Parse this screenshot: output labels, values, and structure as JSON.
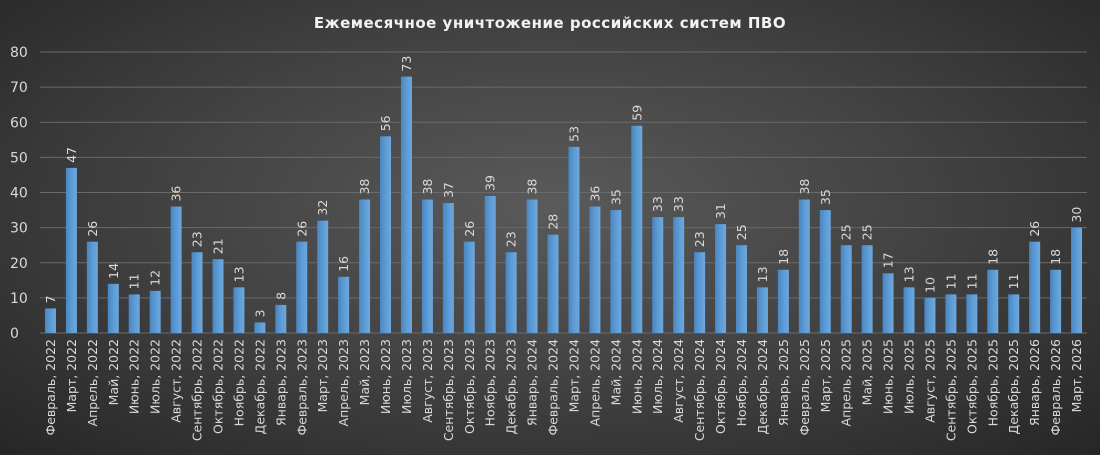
{
  "chart_data": {
    "type": "bar",
    "title": "Ежемесячное  уничтожение  российских  систем  ПВО",
    "xlabel": "",
    "ylabel": "",
    "ylim": [
      0,
      80
    ],
    "yticks": [
      0,
      10,
      20,
      30,
      40,
      50,
      60,
      70,
      80
    ],
    "grid": true,
    "legend": "none",
    "bar_color": "#5b9bd5",
    "categories": [
      "Февраль, 2022",
      "Март, 2022",
      "Апрель, 2022",
      "Май, 2022",
      "Июнь, 2022",
      "Июль, 2022",
      "Август, 2022",
      "Сентябрь, 2022",
      "Октябрь, 2022",
      "Ноябрь, 2022",
      "Декабрь, 2022",
      "Январь, 2023",
      "Февраль, 2023",
      "Март, 2023",
      "Апрель, 2023",
      "Май, 2023",
      "Июнь, 2023",
      "Июль, 2023",
      "Август, 2023",
      "Сентябрь, 2023",
      "Октябрь, 2023",
      "Ноябрь, 2023",
      "Декабрь, 2023",
      "Январь, 2024",
      "Февраль, 2024",
      "Март, 2024",
      "Апрель, 2024",
      "Май, 2024",
      "Июнь, 2024",
      "Июль, 2024",
      "Август, 2024",
      "Сентябрь, 2024",
      "Октябрь, 2024",
      "Ноябрь, 2024",
      "Декабрь, 2024",
      "Январь, 2025",
      "Февраль, 2025",
      "Март, 2025",
      "Апрель, 2025",
      "Май, 2025",
      "Июнь, 2025",
      "Июль, 2025",
      "Август, 2025",
      "Сентябрь, 2025",
      "Октябрь, 2025",
      "Ноябрь, 2025",
      "Декабрь, 2025",
      "Январь, 2026",
      "Февраль, 2026",
      "Март, 2026"
    ],
    "values": [
      7,
      47,
      26,
      14,
      11,
      12,
      36,
      23,
      21,
      13,
      3,
      8,
      26,
      32,
      16,
      38,
      56,
      73,
      38,
      37,
      26,
      39,
      23,
      38,
      28,
      53,
      36,
      35,
      59,
      33,
      33,
      23,
      31,
      25,
      13,
      18,
      38,
      35,
      25,
      25,
      17,
      13,
      10,
      11,
      11,
      18,
      11,
      26,
      18,
      30
    ]
  }
}
